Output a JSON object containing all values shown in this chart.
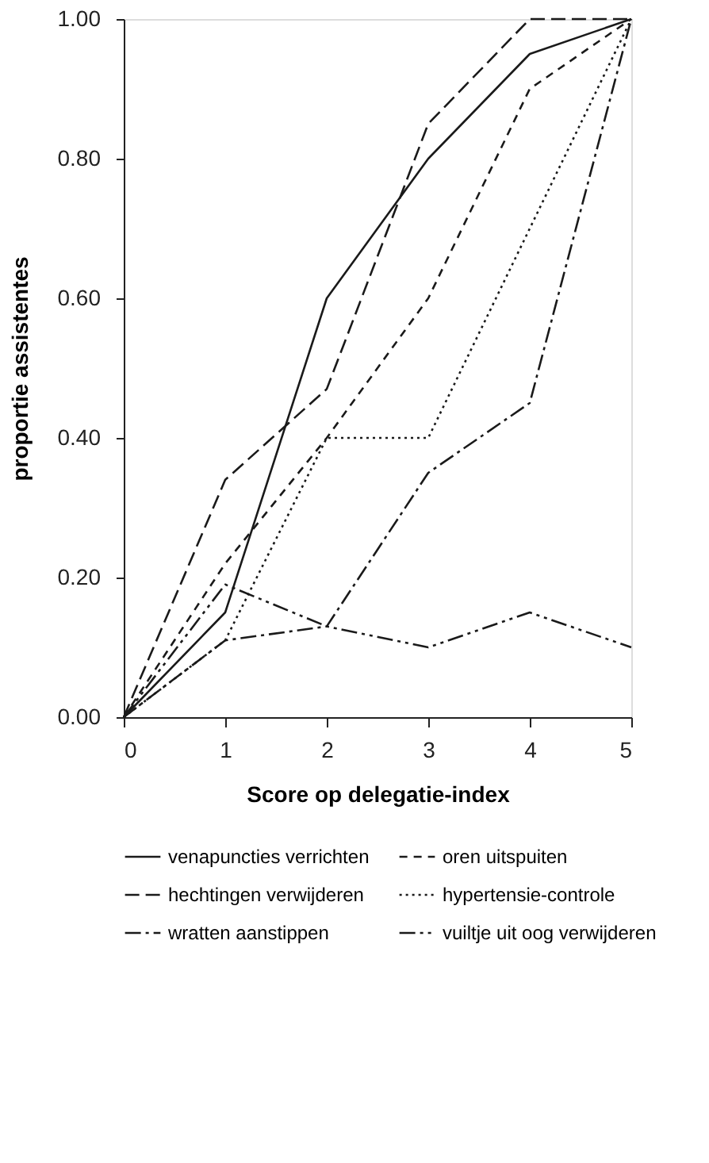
{
  "chart_data": {
    "type": "line",
    "xlabel": "Score op delegatie-index",
    "ylabel": "proportie assistentes",
    "x": [
      0,
      1,
      2,
      3,
      4,
      5
    ],
    "xlim": [
      0,
      5
    ],
    "xticks": [
      0,
      1,
      2,
      3,
      4,
      5
    ],
    "ylim": [
      0,
      1
    ],
    "yticks": [
      {
        "value": 0,
        "label": "0.00"
      },
      {
        "value": 0.2,
        "label": "0.20"
      },
      {
        "value": 0.4,
        "label": "0.40"
      },
      {
        "value": 0.6,
        "label": "0.60"
      },
      {
        "value": 0.8,
        "label": "0.80"
      },
      {
        "value": 1,
        "label": "1.00"
      }
    ],
    "grid": false,
    "legend": "bottom",
    "marker": "none",
    "series": [
      {
        "name": "venapuncties verrichten",
        "color": "#1a1a1a",
        "line_style": "solid",
        "values": [
          0,
          0.15,
          0.6,
          0.8,
          0.95,
          1.0
        ]
      },
      {
        "name": "oren uitspuiten",
        "color": "#1a1a1a",
        "line_style": "dashed",
        "values": [
          0,
          0.22,
          0.4,
          0.6,
          0.9,
          1.0
        ]
      },
      {
        "name": "hechtingen verwijderen",
        "color": "#1a1a1a",
        "line_style": "longdashed",
        "values": [
          0,
          0.34,
          0.47,
          0.85,
          1.0,
          1.0
        ]
      },
      {
        "name": "hypertensie-controle",
        "color": "#1a1a1a",
        "line_style": "dotted",
        "values": [
          0,
          0.11,
          0.4,
          0.4,
          0.7,
          1.0
        ]
      },
      {
        "name": "wratten aanstippen",
        "color": "#1a1a1a",
        "line_style": "dashdot",
        "values": [
          0,
          0.11,
          0.13,
          0.35,
          0.45,
          1.0
        ]
      },
      {
        "name": "vuiltje uit oog verwijderen",
        "color": "#1a1a1a",
        "line_style": "dashdotdot",
        "values": [
          0,
          0.19,
          0.13,
          0.1,
          0.15,
          0.1
        ]
      }
    ]
  }
}
